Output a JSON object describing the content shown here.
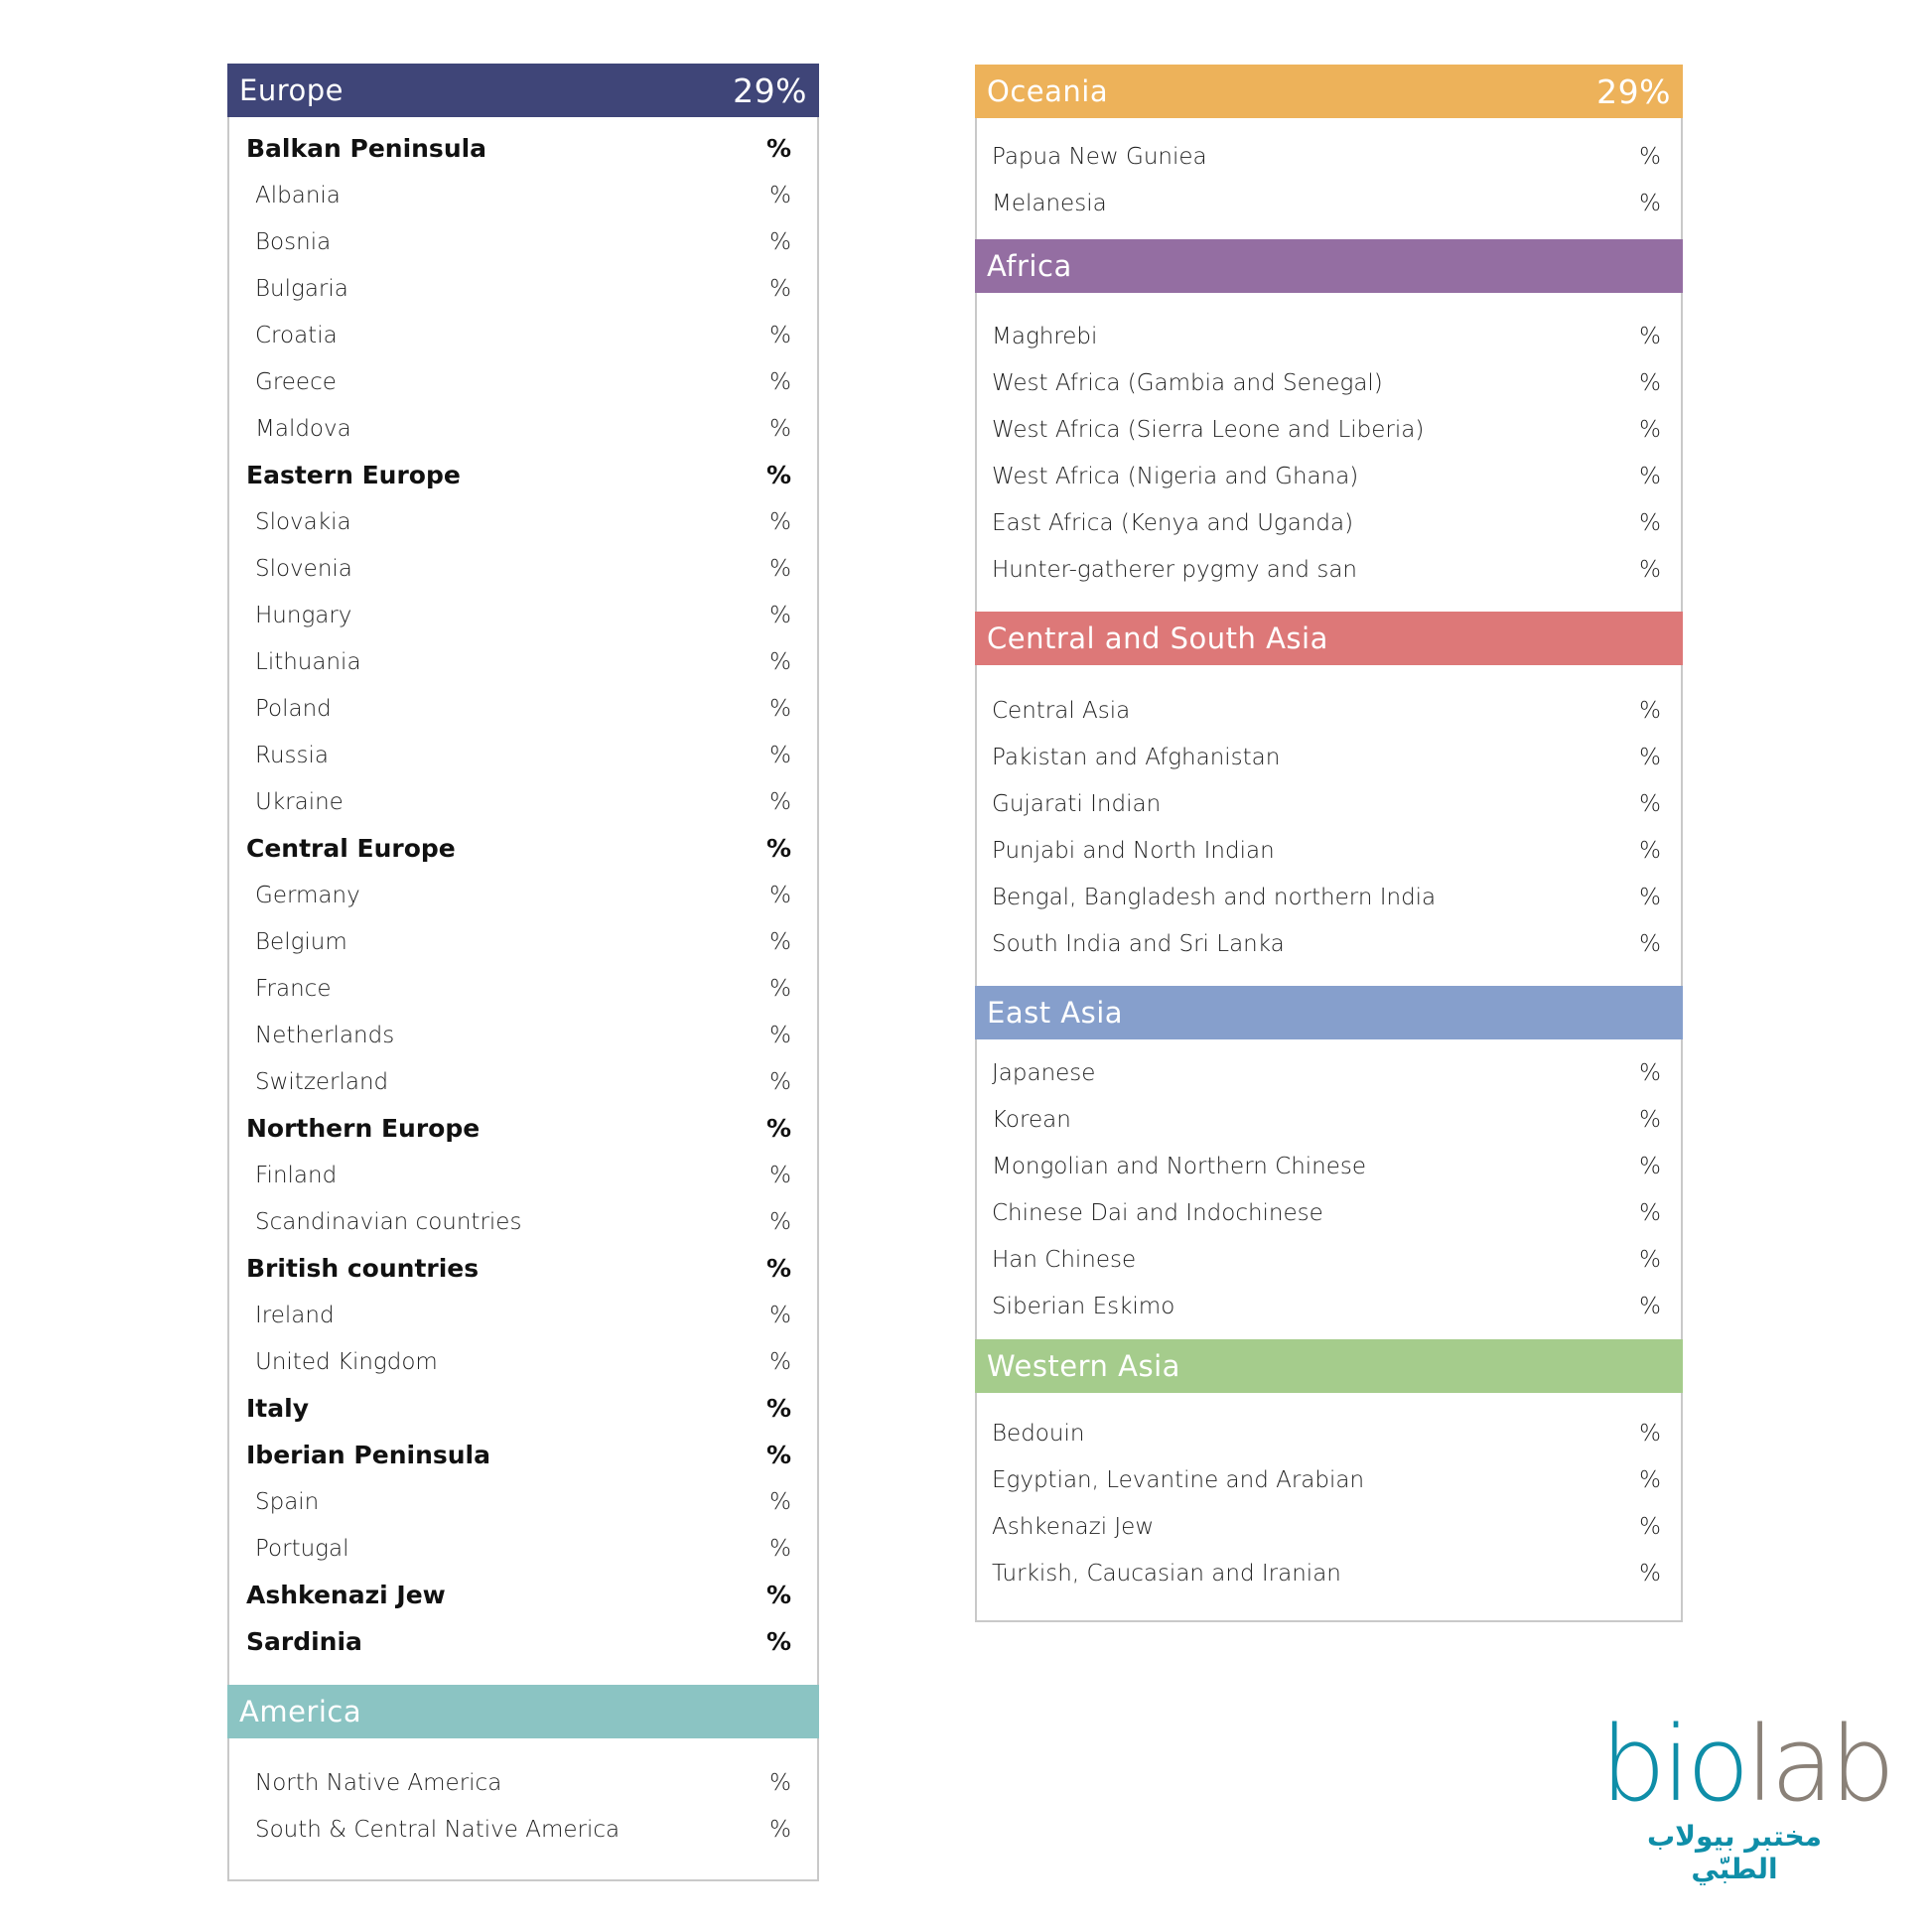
{
  "left": [
    {
      "id": "europe",
      "title": "Europe",
      "percent": "29%",
      "color": "#3f4578",
      "rows": [
        {
          "label": "Balkan Peninsula",
          "value": "%",
          "sub": true
        },
        {
          "label": "Albania",
          "value": "%"
        },
        {
          "label": "Bosnia",
          "value": "%"
        },
        {
          "label": "Bulgaria",
          "value": "%"
        },
        {
          "label": "Croatia",
          "value": "%"
        },
        {
          "label": "Greece",
          "value": "%"
        },
        {
          "label": "Maldova",
          "value": "%"
        },
        {
          "label": "Eastern Europe",
          "value": "%",
          "sub": true
        },
        {
          "label": "Slovakia",
          "value": "%"
        },
        {
          "label": "Slovenia",
          "value": "%"
        },
        {
          "label": "Hungary",
          "value": "%"
        },
        {
          "label": "Lithuania",
          "value": "%"
        },
        {
          "label": "Poland",
          "value": "%"
        },
        {
          "label": "Russia",
          "value": "%"
        },
        {
          "label": "Ukraine",
          "value": "%"
        },
        {
          "label": "Central Europe",
          "value": "%",
          "sub": true
        },
        {
          "label": "Germany",
          "value": "%"
        },
        {
          "label": "Belgium",
          "value": "%"
        },
        {
          "label": "France",
          "value": "%"
        },
        {
          "label": "Netherlands",
          "value": "%"
        },
        {
          "label": "Switzerland",
          "value": "%"
        },
        {
          "label": "Northern Europe",
          "value": "%",
          "sub": true
        },
        {
          "label": "Finland",
          "value": "%"
        },
        {
          "label": "Scandinavian countries",
          "value": "%"
        },
        {
          "label": "British countries",
          "value": "%",
          "sub": true
        },
        {
          "label": "Ireland",
          "value": "%"
        },
        {
          "label": "United Kingdom",
          "value": "%"
        },
        {
          "label": "Italy",
          "value": "%",
          "sub": true
        },
        {
          "label": "Iberian Peninsula",
          "value": "%",
          "sub": true
        },
        {
          "label": "Spain",
          "value": "%"
        },
        {
          "label": "Portugal",
          "value": "%"
        },
        {
          "label": "Ashkenazi Jew",
          "value": "%",
          "sub": true
        },
        {
          "label": "Sardinia",
          "value": "%",
          "sub": true
        }
      ]
    },
    {
      "id": "america",
      "title": "America",
      "percent": "",
      "color": "#8bc4c3",
      "rows": [
        {
          "label": "North Native America",
          "value": "%"
        },
        {
          "label": "South & Central Native America",
          "value": "%"
        }
      ]
    }
  ],
  "right": [
    {
      "id": "oceania",
      "title": "Oceania",
      "percent": "29%",
      "color": "#edb25a",
      "rows": [
        {
          "label": "Papua New Guniea",
          "value": "%"
        },
        {
          "label": "Melanesia",
          "value": "%"
        }
      ]
    },
    {
      "id": "africa",
      "title": "Africa",
      "percent": "",
      "color": "#946ea2",
      "rows": [
        {
          "label": "Maghrebi",
          "value": "%"
        },
        {
          "label": "West Africa (Gambia and Senegal)",
          "value": "%"
        },
        {
          "label": "West Africa (Sierra Leone and Liberia)",
          "value": "%"
        },
        {
          "label": "West Africa (Nigeria and Ghana)",
          "value": "%"
        },
        {
          "label": "East Africa (Kenya and Uganda)",
          "value": "%"
        },
        {
          "label": "Hunter-gatherer pygmy and san",
          "value": "%"
        }
      ]
    },
    {
      "id": "central-south-asia",
      "title": "Central and South Asia",
      "percent": "",
      "color": "#dd7878",
      "rows": [
        {
          "label": "Central Asia",
          "value": "%"
        },
        {
          "label": "Pakistan and Afghanistan",
          "value": "%"
        },
        {
          "label": "Gujarati Indian",
          "value": "%"
        },
        {
          "label": "Punjabi and North Indian",
          "value": "%"
        },
        {
          "label": "Bengal, Bangladesh and northern India",
          "value": "%"
        },
        {
          "label": "South India and Sri Lanka",
          "value": "%"
        }
      ]
    },
    {
      "id": "east-asia",
      "title": "East Asia",
      "percent": "",
      "color": "#869fcc",
      "rows": [
        {
          "label": "Japanese",
          "value": "%"
        },
        {
          "label": "Korean",
          "value": "%"
        },
        {
          "label": "Mongolian and Northern Chinese",
          "value": "%"
        },
        {
          "label": "Chinese Dai and Indochinese",
          "value": "%"
        },
        {
          "label": "Han Chinese",
          "value": "%"
        },
        {
          "label": "Siberian Eskimo",
          "value": "%"
        }
      ]
    },
    {
      "id": "western-asia",
      "title": "Western Asia",
      "percent": "",
      "color": "#a5cc8c",
      "rows": [
        {
          "label": "Bedouin",
          "value": "%"
        },
        {
          "label": "Egyptian, Levantine and Arabian",
          "value": "%"
        },
        {
          "label": "Ashkenazi Jew",
          "value": "%"
        },
        {
          "label": "Turkish, Caucasian and Iranian",
          "value": "%"
        }
      ]
    }
  ],
  "logo": {
    "text_bio": "bio",
    "text_lab": "lab",
    "arabic": "مختبر بيولاب الطبّي"
  }
}
